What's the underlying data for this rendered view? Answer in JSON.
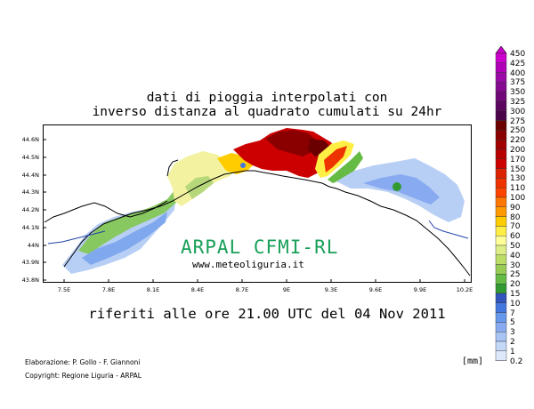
{
  "title_line1": "dati di pioggia interpolati con",
  "title_line2": "inverso distanza al quadrato cumulati su 24hr",
  "subtitle": "riferiti alle ore 21.00 UTC del 04 Nov 2011",
  "credits": {
    "line1": "Elaborazione: P. Gollo - F. Giannoni",
    "line2": "Copyright: Regione Liguria - ARPAL"
  },
  "watermark": "ARPAL CFMI-RL",
  "url": "www.meteoliguria.it",
  "unit": "[mm]",
  "map": {
    "latitude_ticks": [
      "44.6N",
      "44.5N",
      "44.4N",
      "44.3N",
      "44.2N",
      "44.1N",
      "44N",
      "43.9N",
      "43.8N"
    ],
    "longitude_ticks": [
      "7.5E",
      "7.8E",
      "8.1E",
      "8.4E",
      "8.7E",
      "9E",
      "9.3E",
      "9.6E",
      "9.9E",
      "10.2E"
    ]
  },
  "color_scale": {
    "labels": [
      "450",
      "425",
      "400",
      "375",
      "350",
      "325",
      "300",
      "275",
      "250",
      "220",
      "200",
      "170",
      "150",
      "130",
      "110",
      "100",
      "90",
      "80",
      "70",
      "60",
      "50",
      "40",
      "30",
      "25",
      "20",
      "15",
      "10",
      "7",
      "5",
      "3",
      "2",
      "1",
      "0.2"
    ],
    "colors": [
      "#cc00cc",
      "#b000b8",
      "#9a0aa6",
      "#860a90",
      "#700878",
      "#5c0660",
      "#4a0448",
      "#6a0000",
      "#8a0000",
      "#a00000",
      "#b80000",
      "#cc0000",
      "#dd2200",
      "#ee3300",
      "#ff4400",
      "#ff7700",
      "#ff9900",
      "#ffcc00",
      "#ffee44",
      "#ffff99",
      "#ddee88",
      "#bbdd66",
      "#99cc55",
      "#66bb44",
      "#339933",
      "#3355bb",
      "#4477dd",
      "#6699ee",
      "#88aaf0",
      "#a8c4f4",
      "#c4d8f8",
      "#dde8fb",
      "#f2f6fd"
    ]
  }
}
